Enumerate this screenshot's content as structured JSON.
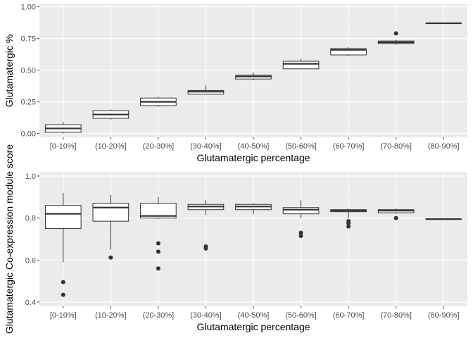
{
  "chart_data": [
    {
      "type": "box",
      "xlabel": "Glutamatergic percentage",
      "ylabel": "Glutamatergic %",
      "ylim": [
        -0.03,
        1.02
      ],
      "yticks": [
        0.0,
        0.25,
        0.5,
        0.75,
        1.0
      ],
      "ytick_labels": [
        "0.00",
        "0.25",
        "0.50",
        "0.75",
        "1.00"
      ],
      "categories": [
        "[0-10%]",
        "(10-20%]",
        "(20-30%]",
        "(30-40%]",
        "(40-50%]",
        "(50-60%]",
        "(60-70%]",
        "(70-80%]",
        "(80-90%]"
      ],
      "boxes": [
        {
          "min": 0.0,
          "q1": 0.01,
          "median": 0.04,
          "q3": 0.07,
          "max": 0.09,
          "outliers": []
        },
        {
          "min": 0.11,
          "q1": 0.12,
          "median": 0.15,
          "q3": 0.18,
          "max": 0.19,
          "outliers": []
        },
        {
          "min": 0.21,
          "q1": 0.22,
          "median": 0.25,
          "q3": 0.28,
          "max": 0.29,
          "outliers": []
        },
        {
          "min": 0.31,
          "q1": 0.31,
          "median": 0.33,
          "q3": 0.34,
          "max": 0.38,
          "outliers": []
        },
        {
          "min": 0.42,
          "q1": 0.43,
          "median": 0.45,
          "q3": 0.46,
          "max": 0.48,
          "outliers": []
        },
        {
          "min": 0.51,
          "q1": 0.51,
          "median": 0.55,
          "q3": 0.57,
          "max": 0.59,
          "outliers": []
        },
        {
          "min": 0.61,
          "q1": 0.62,
          "median": 0.66,
          "q3": 0.67,
          "max": 0.68,
          "outliers": []
        },
        {
          "min": 0.7,
          "q1": 0.71,
          "median": 0.72,
          "q3": 0.73,
          "max": 0.74,
          "outliers": [
            0.79
          ]
        },
        {
          "min": 0.87,
          "q1": 0.87,
          "median": 0.87,
          "q3": 0.87,
          "max": 0.87,
          "outliers": []
        }
      ]
    },
    {
      "type": "box",
      "xlabel": "Glutamatergic percentage",
      "ylabel": "Glutamatergic Co-expression module score",
      "ylim": [
        0.38,
        1.02
      ],
      "yticks": [
        0.4,
        0.6,
        0.8,
        1.0
      ],
      "ytick_labels": [
        "0.4",
        "0.6",
        "0.8",
        "1.0"
      ],
      "categories": [
        "[0-10%]",
        "(10-20%]",
        "(20-30%]",
        "(30-40%]",
        "(40-50%]",
        "(50-60%]",
        "(60-70%]",
        "(70-80%]",
        "(80-90%]"
      ],
      "boxes": [
        {
          "min": 0.59,
          "q1": 0.75,
          "median": 0.82,
          "q3": 0.86,
          "max": 0.92,
          "outliers": [
            0.495,
            0.435
          ]
        },
        {
          "min": 0.65,
          "q1": 0.785,
          "median": 0.85,
          "q3": 0.87,
          "max": 0.91,
          "outliers": [
            0.612
          ]
        },
        {
          "min": 0.795,
          "q1": 0.8,
          "median": 0.81,
          "q3": 0.87,
          "max": 0.9,
          "outliers": [
            0.68,
            0.64,
            0.56
          ]
        },
        {
          "min": 0.815,
          "q1": 0.84,
          "median": 0.855,
          "q3": 0.865,
          "max": 0.885,
          "outliers": [
            0.665,
            0.655
          ]
        },
        {
          "min": 0.82,
          "q1": 0.84,
          "median": 0.855,
          "q3": 0.865,
          "max": 0.87,
          "outliers": []
        },
        {
          "min": 0.8,
          "q1": 0.82,
          "median": 0.84,
          "q3": 0.85,
          "max": 0.885,
          "outliers": [
            0.73,
            0.715
          ]
        },
        {
          "min": 0.8,
          "q1": 0.83,
          "median": 0.835,
          "q3": 0.84,
          "max": 0.845,
          "outliers": [
            0.785,
            0.775,
            0.76
          ]
        },
        {
          "min": 0.82,
          "q1": 0.825,
          "median": 0.835,
          "q3": 0.84,
          "max": 0.845,
          "outliers": [
            0.8
          ]
        },
        {
          "min": 0.795,
          "q1": 0.795,
          "median": 0.795,
          "q3": 0.795,
          "max": 0.795,
          "outliers": []
        }
      ]
    }
  ]
}
